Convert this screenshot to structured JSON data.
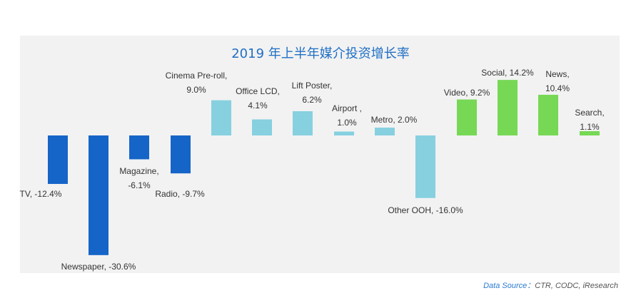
{
  "chart_data": {
    "type": "bar",
    "title": "2019 年上半年媒介投资增长率",
    "categories": [
      "TV",
      "Newspaper",
      "Magazine",
      "Radio",
      "Cinema Pre-roll",
      "Office LCD",
      "Lift Poster",
      "Airport",
      "Metro",
      "Other OOH",
      "Video",
      "Social",
      "News",
      "Search"
    ],
    "values": [
      -12.4,
      -30.6,
      -6.1,
      -9.7,
      9.0,
      4.1,
      6.2,
      1.0,
      2.0,
      -16.0,
      9.2,
      14.2,
      10.4,
      1.1
    ],
    "groups": [
      "traditional",
      "traditional",
      "traditional",
      "traditional",
      "outdoor",
      "outdoor",
      "outdoor",
      "outdoor",
      "outdoor",
      "outdoor",
      "online",
      "online",
      "online",
      "online"
    ],
    "labels": [
      [
        "TV, -12.4%"
      ],
      [
        "Newspaper, -30.6%"
      ],
      [
        "Magazine,",
        "-6.1%"
      ],
      [
        "Radio, -9.7%"
      ],
      [
        "Cinema Pre-roll,",
        "9.0%"
      ],
      [
        "Office LCD,",
        "4.1%"
      ],
      [
        "Lift Poster,",
        "6.2%"
      ],
      [
        "Airport ,",
        "1.0%"
      ],
      [
        "Metro, 2.0%"
      ],
      [
        "Other OOH, -16.0%"
      ],
      [
        "Video, 9.2%"
      ],
      [
        "Social, 14.2%"
      ],
      [
        "News,",
        "10.4%"
      ],
      [
        "Search,",
        "1.1%"
      ]
    ],
    "colors": {
      "traditional": "#1565c8",
      "outdoor": "#86d0e0",
      "online": "#77d855"
    },
    "xlabel": "",
    "ylabel": ""
  },
  "source": {
    "prefix": "Data Source：",
    "rest": "CTR, CODC, iResearch"
  }
}
